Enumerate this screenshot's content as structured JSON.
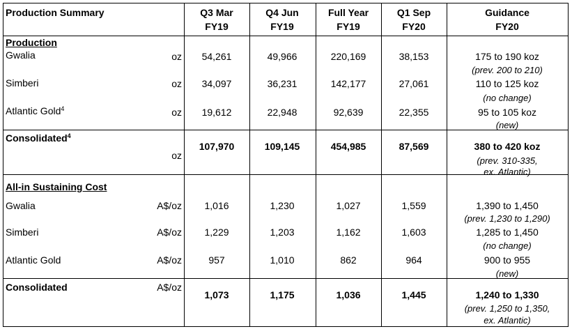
{
  "header": {
    "title": "Production Summary",
    "columns": [
      {
        "line1": "Q3 Mar",
        "line2": "FY19"
      },
      {
        "line1": "Q4 Jun",
        "line2": "FY19"
      },
      {
        "line1": "Full Year",
        "line2": "FY19"
      },
      {
        "line1": "Q1 Sep",
        "line2": "FY20"
      },
      {
        "line1": "Guidance",
        "line2": "FY20"
      }
    ]
  },
  "production": {
    "section_title": "Production",
    "rows": [
      {
        "label": "Gwalia",
        "sup": "",
        "unit": "oz",
        "q3": "54,261",
        "q4": "49,966",
        "fy": "220,169",
        "q1": "38,153",
        "guidance": "175 to 190 koz",
        "note1": "(prev. 200 to 210)",
        "note2": ""
      },
      {
        "label": "Simberi",
        "sup": "",
        "unit": "oz",
        "q3": "34,097",
        "q4": "36,231",
        "fy": "142,177",
        "q1": "27,061",
        "guidance": "110 to 125 koz",
        "note1": "(no change)",
        "note2": ""
      },
      {
        "label": "Atlantic Gold",
        "sup": "4",
        "unit": "oz",
        "q3": "19,612",
        "q4": "22,948",
        "fy": "92,639",
        "q1": "22,355",
        "guidance": "95 to 105 koz",
        "note1": "(new)",
        "note2": ""
      }
    ],
    "consolidated": {
      "label": "Consolidated",
      "sup": "4",
      "unit": "oz",
      "q3": "107,970",
      "q4": "109,145",
      "fy": "454,985",
      "q1": "87,569",
      "guidance": "380 to 420 koz",
      "note1": "(prev. 310-335,",
      "note2": "ex. Atlantic)"
    }
  },
  "aisc": {
    "section_title": "All-in Sustaining Cost",
    "rows": [
      {
        "label": "Gwalia",
        "unit": "A$/oz",
        "q3": "1,016",
        "q4": "1,230",
        "fy": "1,027",
        "q1": "1,559",
        "guidance": "1,390 to 1,450",
        "note1": "(prev. 1,230 to 1,290)",
        "note2": ""
      },
      {
        "label": "Simberi",
        "unit": "A$/oz",
        "q3": "1,229",
        "q4": "1,203",
        "fy": "1,162",
        "q1": "1,603",
        "guidance": "1,285 to 1,450",
        "note1": "(no change)",
        "note2": ""
      },
      {
        "label": "Atlantic Gold",
        "unit": "A$/oz",
        "q3": "957",
        "q4": "1,010",
        "fy": "862",
        "q1": "964",
        "guidance": "900 to 955",
        "note1": "(new)",
        "note2": ""
      }
    ],
    "consolidated": {
      "label": "Consolidated",
      "unit": "A$/oz",
      "q3": "1,073",
      "q4": "1,175",
      "fy": "1,036",
      "q1": "1,445",
      "guidance": "1,240 to 1,330",
      "note1": "(prev. 1,250 to 1,350,",
      "note2": "ex. Atlantic)"
    }
  }
}
